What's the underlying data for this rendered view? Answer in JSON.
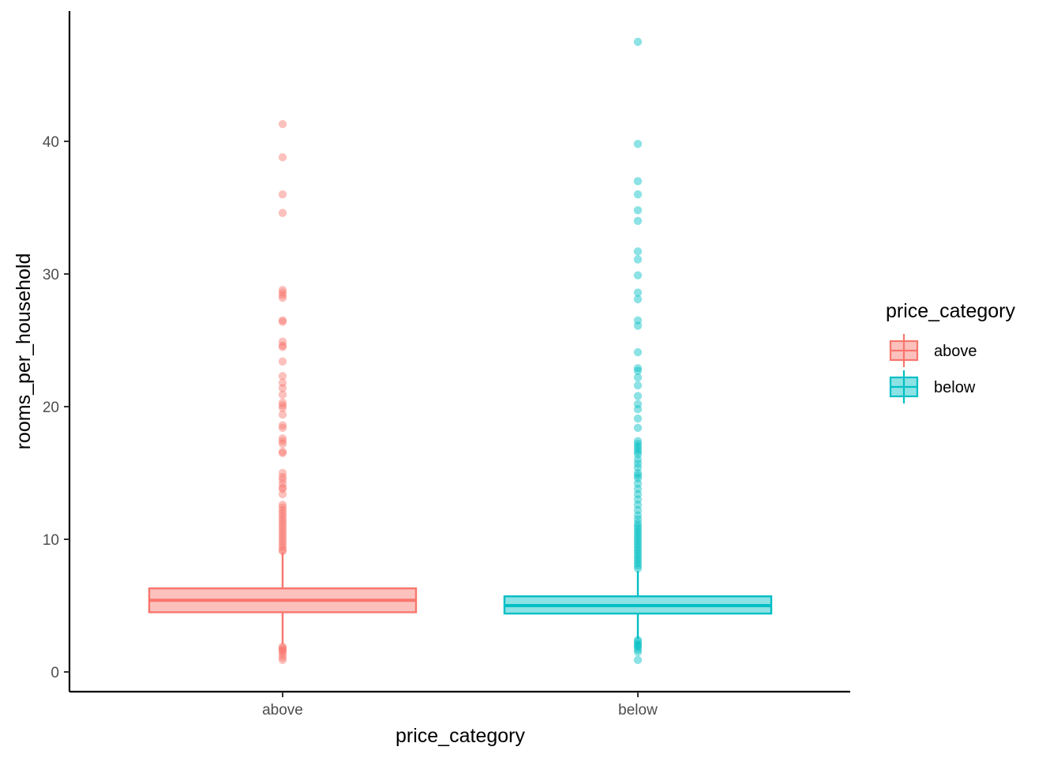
{
  "chart_data": {
    "type": "boxplot",
    "xlabel": "price_category",
    "ylabel": "rooms_per_household",
    "categories": [
      "above",
      "below"
    ],
    "ylim": [
      -1.5,
      49
    ],
    "yticks": [
      0,
      10,
      20,
      30,
      40
    ],
    "grid": false,
    "legend": {
      "title": "price_category",
      "position": "right",
      "entries": [
        "above",
        "below"
      ]
    },
    "colors": {
      "above": "#F8766D",
      "below": "#00BFC4"
    },
    "series": [
      {
        "name": "above",
        "whisker_low": 2.1,
        "q1": 4.5,
        "median": 5.4,
        "q3": 6.3,
        "whisker_high": 9.0,
        "outliers": [
          41.3,
          38.8,
          36.0,
          34.6,
          28.8,
          28.6,
          28.4,
          28.2,
          26.5,
          26.4,
          24.9,
          24.6,
          24.5,
          23.4,
          22.3,
          21.8,
          21.4,
          20.9,
          20.3,
          20.1,
          19.9,
          19.4,
          18.6,
          18.4,
          17.6,
          17.4,
          17.2,
          16.6,
          16.5,
          15.0,
          14.7,
          14.5,
          14.2,
          13.9,
          13.8,
          13.4,
          12.6,
          12.4,
          12.2,
          12.0,
          11.8,
          11.6,
          11.4,
          11.2,
          11.0,
          10.8,
          10.6,
          10.4,
          10.2,
          10.0,
          9.8,
          9.6,
          9.4,
          9.2,
          9.1,
          1.9,
          1.8,
          1.7,
          1.6,
          1.5,
          1.3,
          1.1,
          0.9
        ]
      },
      {
        "name": "below",
        "whisker_low": 2.5,
        "q1": 4.4,
        "median": 5.0,
        "q3": 5.7,
        "whisker_high": 7.6,
        "outliers": [
          47.5,
          39.8,
          37.0,
          36.0,
          34.8,
          34.0,
          31.7,
          31.1,
          29.9,
          28.6,
          28.1,
          26.5,
          26.1,
          24.1,
          22.9,
          22.7,
          22.2,
          21.6,
          20.8,
          20.2,
          19.8,
          19.1,
          18.4,
          17.4,
          17.2,
          17.0,
          16.8,
          16.6,
          16.4,
          16.0,
          15.7,
          15.4,
          15.0,
          14.8,
          14.6,
          14.2,
          13.8,
          13.4,
          13.0,
          12.6,
          12.2,
          11.8,
          11.5,
          11.2,
          11.0,
          10.8,
          10.6,
          10.4,
          10.2,
          10.0,
          9.8,
          9.6,
          9.4,
          9.2,
          9.0,
          8.8,
          8.6,
          8.4,
          8.2,
          8.0,
          7.8,
          2.4,
          2.3,
          2.1,
          2.0,
          1.9,
          1.7,
          1.5,
          0.9
        ]
      }
    ]
  }
}
